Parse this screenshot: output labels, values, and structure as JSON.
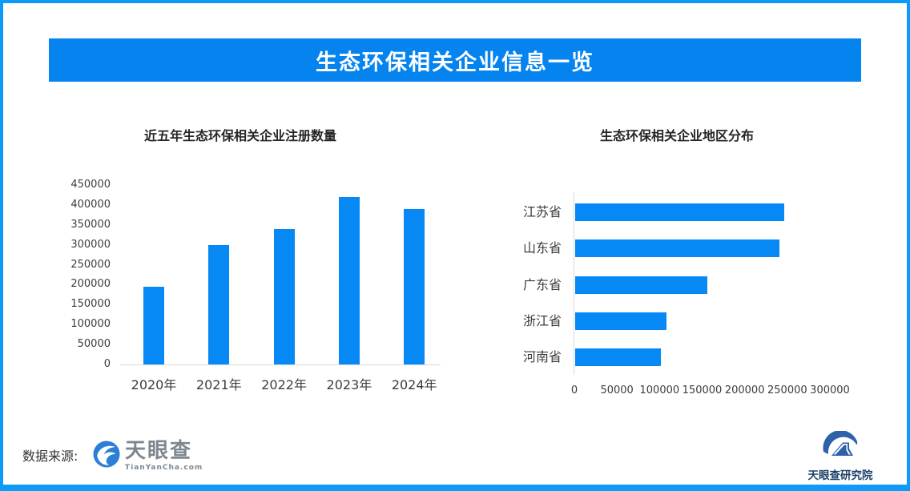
{
  "header": {
    "title": "生态环保相关企业信息一览"
  },
  "colors": {
    "border_blue": "#0d9bfa",
    "banner_blue": "#0584f0",
    "bar_blue": "#0689f5",
    "axis_line_color": "#d9d9d9",
    "chart_title_color": "#262626",
    "tick_label_color": "#3c3c3c",
    "footer_text_color": "#333333",
    "tyc_text_color": "#7d8790",
    "tyc_icon_blue": "#2b7fd6",
    "research_logo_blue": "#2e62a8",
    "research_text_color": "#1d4066"
  },
  "chart_data": [
    {
      "type": "bar",
      "orientation": "vertical",
      "title": "近五年生态环保相关企业注册数量",
      "categories": [
        "2020年",
        "2021年",
        "2022年",
        "2023年",
        "2024年"
      ],
      "values": [
        195000,
        300000,
        340000,
        420000,
        390000
      ],
      "xlabel": "",
      "ylabel": "",
      "ylim": [
        0,
        450000
      ],
      "ytick_step": 50000,
      "yticks": [
        "0",
        "50000",
        "100000",
        "150000",
        "200000",
        "250000",
        "300000",
        "350000",
        "400000",
        "450000"
      ],
      "grid": false,
      "legend": null
    },
    {
      "type": "bar",
      "orientation": "horizontal",
      "title": "生态环保相关企业地区分布",
      "categories": [
        "江苏省",
        "山东省",
        "广东省",
        "浙江省",
        "河南省"
      ],
      "values": [
        245000,
        240000,
        155000,
        107000,
        101000
      ],
      "xlabel": "",
      "ylabel": "",
      "xlim": [
        0,
        300000
      ],
      "xtick_step": 50000,
      "xticks": [
        "0",
        "50000",
        "100000",
        "150000",
        "200000",
        "250000",
        "300000"
      ],
      "grid": false,
      "legend": null
    }
  ],
  "footer": {
    "source_label": "数据来源:",
    "tyc_logo": {
      "name": "天眼查",
      "domain": "TianYanCha.com"
    },
    "research_logo": {
      "name": "天眼查研究院"
    }
  }
}
